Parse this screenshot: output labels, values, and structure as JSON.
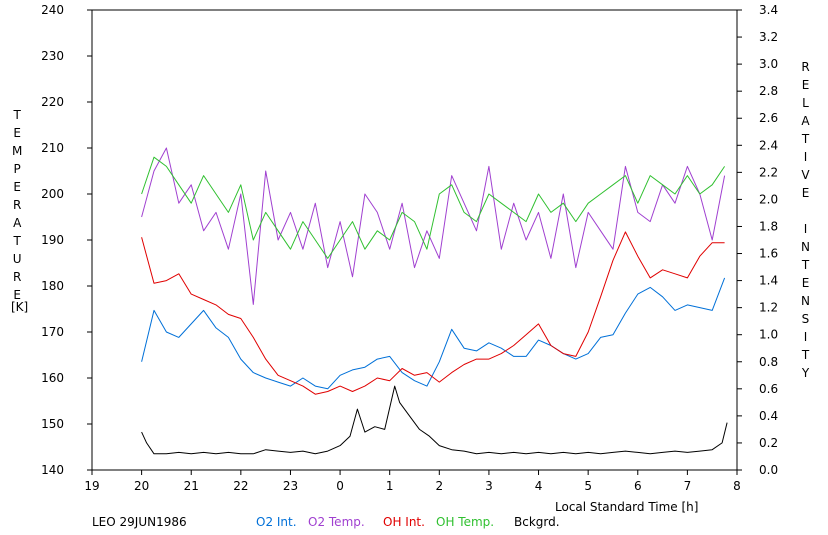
{
  "chart_data": {
    "type": "line",
    "caption": "LEO 29JUN1986",
    "xlabel": "Local Standard Time [h]",
    "ylabel_left": "TEMPERATURE",
    "ylabel_left_unit": "[K]",
    "ylabel_right": "RELATIVE INTENSITY",
    "xlim": [
      19,
      32
    ],
    "x_tick_values": [
      19,
      20,
      21,
      22,
      23,
      24,
      25,
      26,
      27,
      28,
      29,
      30,
      31,
      32
    ],
    "x_tick_labels": [
      "19",
      "20",
      "21",
      "22",
      "23",
      "0",
      "1",
      "2",
      "3",
      "4",
      "5",
      "6",
      "7",
      "8"
    ],
    "ylim_left": [
      140,
      240
    ],
    "y_left_ticks": [
      "140",
      "150",
      "160",
      "170",
      "180",
      "190",
      "200",
      "210",
      "220",
      "230",
      "240"
    ],
    "ylim_right": [
      0,
      3.4
    ],
    "y_right_ticks": [
      "0.0",
      "0.2",
      "0.4",
      "0.6",
      "0.8",
      "1.0",
      "1.2",
      "1.4",
      "1.6",
      "1.8",
      "2.0",
      "2.2",
      "2.4",
      "2.6",
      "2.8",
      "3.0",
      "3.2",
      "3.4"
    ],
    "grid": false,
    "legend_position": "bottom",
    "series": [
      {
        "name": "O2 Int.",
        "axis": "right",
        "color": "#0070d8",
        "x": [
          20,
          20.25,
          20.5,
          20.75,
          21,
          21.25,
          21.5,
          21.75,
          22,
          22.25,
          22.5,
          22.75,
          23,
          23.25,
          23.5,
          23.75,
          24,
          24.25,
          24.5,
          24.75,
          25,
          25.25,
          25.5,
          25.75,
          26,
          26.25,
          26.5,
          26.75,
          27,
          27.25,
          27.5,
          27.75,
          28,
          28.25,
          28.5,
          28.75,
          29,
          29.25,
          29.5,
          29.75,
          30,
          30.25,
          30.5,
          30.75,
          31,
          31.25,
          31.5,
          31.75
        ],
        "y": [
          0.8,
          1.18,
          1.02,
          0.98,
          1.08,
          1.18,
          1.05,
          0.98,
          0.82,
          0.72,
          0.68,
          0.65,
          0.62,
          0.68,
          0.62,
          0.6,
          0.7,
          0.74,
          0.76,
          0.82,
          0.84,
          0.72,
          0.66,
          0.62,
          0.8,
          1.04,
          0.9,
          0.88,
          0.94,
          0.9,
          0.84,
          0.84,
          0.96,
          0.92,
          0.86,
          0.82,
          0.86,
          0.98,
          1.0,
          1.16,
          1.3,
          1.35,
          1.28,
          1.18,
          1.22,
          1.2,
          1.18,
          1.42
        ]
      },
      {
        "name": "O2 Temp.",
        "axis": "left",
        "color": "#a040d0",
        "x": [
          20,
          20.25,
          20.5,
          20.75,
          21,
          21.25,
          21.5,
          21.75,
          22,
          22.25,
          22.5,
          22.75,
          23,
          23.25,
          23.5,
          23.75,
          24,
          24.25,
          24.5,
          24.75,
          25,
          25.25,
          25.5,
          25.75,
          26,
          26.25,
          26.5,
          26.75,
          27,
          27.25,
          27.5,
          27.75,
          28,
          28.25,
          28.5,
          28.75,
          29,
          29.25,
          29.5,
          29.75,
          30,
          30.25,
          30.5,
          30.75,
          31,
          31.25,
          31.5,
          31.75
        ],
        "y": [
          195,
          205,
          210,
          198,
          202,
          192,
          196,
          188,
          200,
          176,
          205,
          190,
          196,
          188,
          198,
          184,
          194,
          182,
          200,
          196,
          188,
          198,
          184,
          192,
          186,
          204,
          198,
          192,
          206,
          188,
          198,
          190,
          196,
          186,
          200,
          184,
          196,
          192,
          188,
          206,
          196,
          194,
          202,
          198,
          206,
          200,
          190,
          204
        ]
      },
      {
        "name": "OH Int.",
        "axis": "right",
        "color": "#e00000",
        "x": [
          20,
          20.25,
          20.5,
          20.75,
          21,
          21.25,
          21.5,
          21.75,
          22,
          22.25,
          22.5,
          22.75,
          23,
          23.25,
          23.5,
          23.75,
          24,
          24.25,
          24.5,
          24.75,
          25,
          25.25,
          25.5,
          25.75,
          26,
          26.25,
          26.5,
          26.75,
          27,
          27.25,
          27.5,
          27.75,
          28,
          28.25,
          28.5,
          28.75,
          29,
          29.25,
          29.5,
          29.75,
          30,
          30.25,
          30.5,
          30.75,
          31,
          31.25,
          31.5,
          31.75
        ],
        "y": [
          1.72,
          1.38,
          1.4,
          1.45,
          1.3,
          1.26,
          1.22,
          1.15,
          1.12,
          0.98,
          0.82,
          0.7,
          0.66,
          0.62,
          0.56,
          0.58,
          0.62,
          0.58,
          0.62,
          0.68,
          0.66,
          0.75,
          0.7,
          0.72,
          0.65,
          0.72,
          0.78,
          0.82,
          0.82,
          0.86,
          0.92,
          1.0,
          1.08,
          0.92,
          0.86,
          0.84,
          1.02,
          1.28,
          1.55,
          1.76,
          1.58,
          1.42,
          1.48,
          1.45,
          1.42,
          1.58,
          1.68,
          1.68
        ]
      },
      {
        "name": "OH Temp.",
        "axis": "left",
        "color": "#30c030",
        "x": [
          20,
          20.25,
          20.5,
          20.75,
          21,
          21.25,
          21.5,
          21.75,
          22,
          22.25,
          22.5,
          22.75,
          23,
          23.25,
          23.5,
          23.75,
          24,
          24.25,
          24.5,
          24.75,
          25,
          25.25,
          25.5,
          25.75,
          26,
          26.25,
          26.5,
          26.75,
          27,
          27.25,
          27.5,
          27.75,
          28,
          28.25,
          28.5,
          28.75,
          29,
          29.25,
          29.5,
          29.75,
          30,
          30.25,
          30.5,
          30.75,
          31,
          31.25,
          31.5,
          31.75
        ],
        "y": [
          200,
          208,
          206,
          202,
          198,
          204,
          200,
          196,
          202,
          190,
          196,
          192,
          188,
          194,
          190,
          186,
          190,
          194,
          188,
          192,
          190,
          196,
          194,
          188,
          200,
          202,
          196,
          194,
          200,
          198,
          196,
          194,
          200,
          196,
          198,
          194,
          198,
          200,
          202,
          204,
          198,
          204,
          202,
          200,
          204,
          200,
          202,
          206
        ]
      },
      {
        "name": "Bckgrd.",
        "axis": "right",
        "color": "#000000",
        "x": [
          20,
          20.1,
          20.25,
          20.5,
          20.75,
          21,
          21.25,
          21.5,
          21.75,
          22,
          22.25,
          22.5,
          22.75,
          23,
          23.25,
          23.5,
          23.75,
          24,
          24.2,
          24.35,
          24.5,
          24.7,
          24.9,
          25.1,
          25.2,
          25.4,
          25.6,
          25.8,
          26,
          26.25,
          26.5,
          26.75,
          27,
          27.25,
          27.5,
          27.75,
          28,
          28.25,
          28.5,
          28.75,
          29,
          29.25,
          29.5,
          29.75,
          30,
          30.25,
          30.5,
          30.75,
          31,
          31.25,
          31.5,
          31.7,
          31.8
        ],
        "y": [
          0.28,
          0.2,
          0.12,
          0.12,
          0.13,
          0.12,
          0.13,
          0.12,
          0.13,
          0.12,
          0.12,
          0.15,
          0.14,
          0.13,
          0.14,
          0.12,
          0.14,
          0.18,
          0.25,
          0.45,
          0.28,
          0.32,
          0.3,
          0.62,
          0.5,
          0.4,
          0.3,
          0.25,
          0.18,
          0.15,
          0.14,
          0.12,
          0.13,
          0.12,
          0.13,
          0.12,
          0.13,
          0.12,
          0.13,
          0.12,
          0.13,
          0.12,
          0.13,
          0.14,
          0.13,
          0.12,
          0.13,
          0.14,
          0.13,
          0.14,
          0.15,
          0.2,
          0.35
        ]
      }
    ]
  }
}
